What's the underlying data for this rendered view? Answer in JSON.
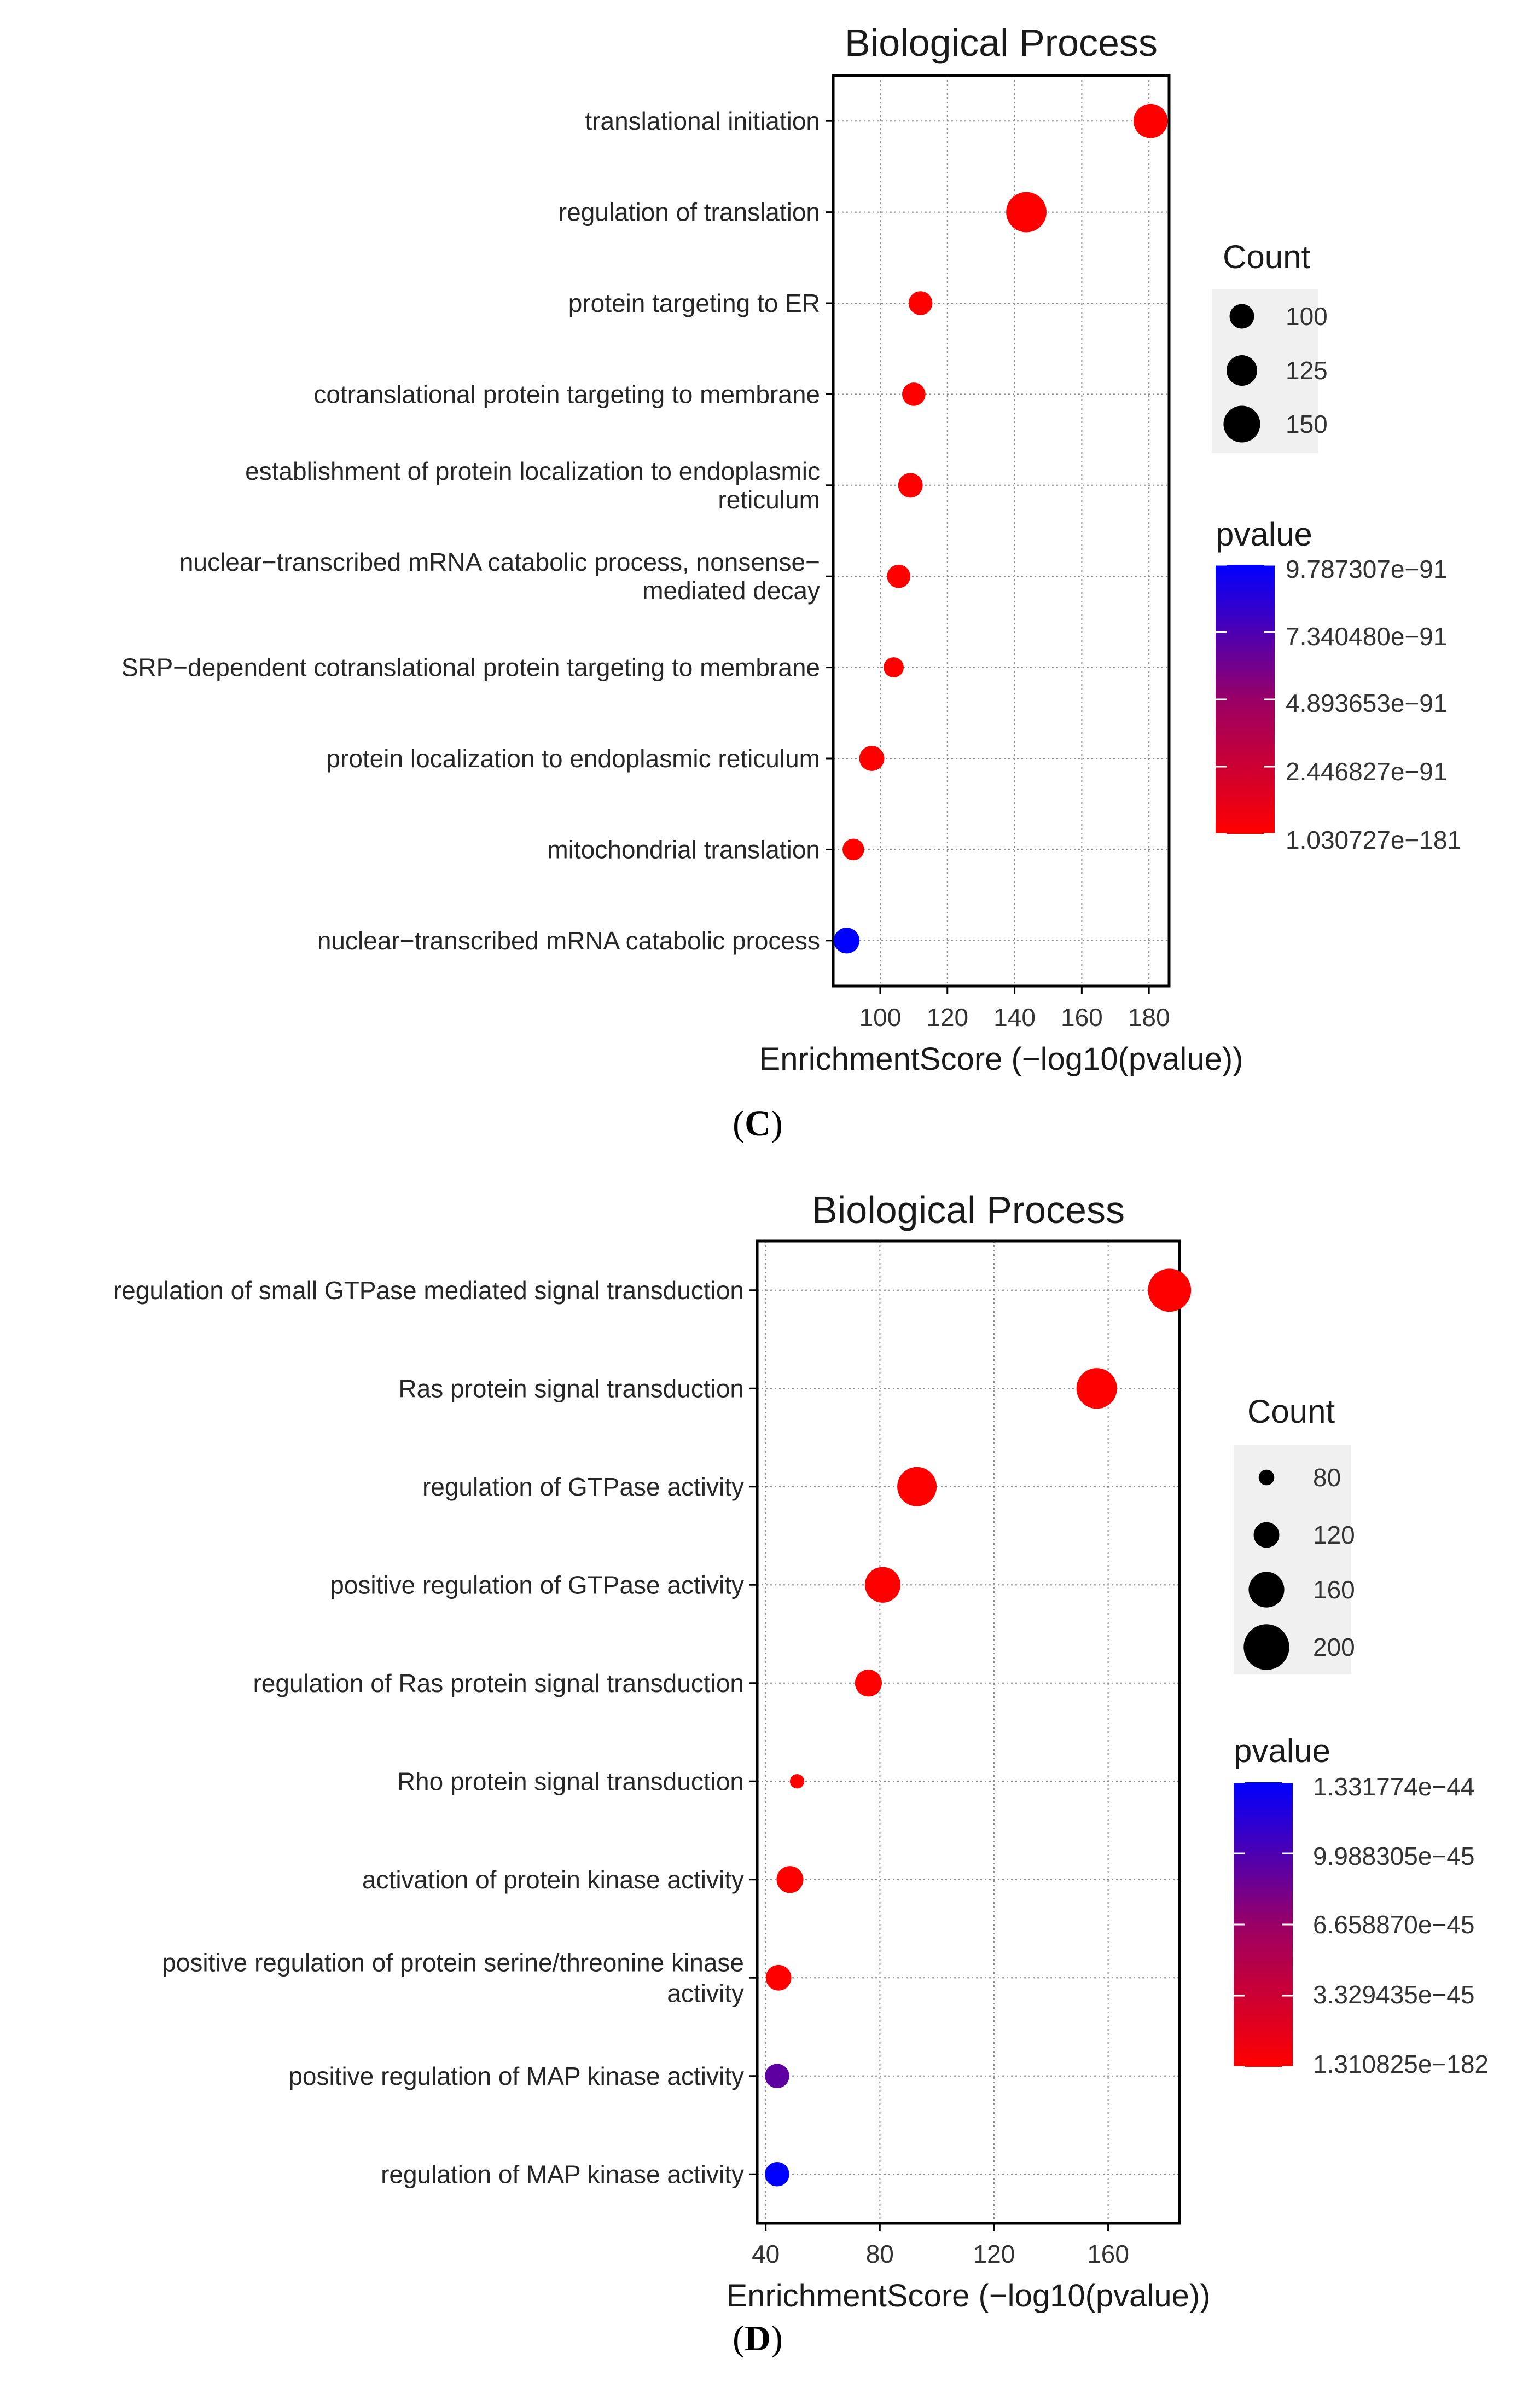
{
  "chart_data": [
    {
      "type": "scatter",
      "panel_prefix": "(",
      "panel_letter": "C",
      "panel_suffix": ")",
      "title": "Biological Process",
      "xlabel": "EnrichmentScore (−log10(pvalue))",
      "xlim": [
        86,
        186
      ],
      "xticks": [
        100,
        120,
        140,
        160,
        180
      ],
      "grid": true,
      "terms": [
        {
          "label": [
            "translational initiation"
          ],
          "x": 180.5,
          "count": 140,
          "pvalue_frac": 0.0
        },
        {
          "label": [
            "regulation of translation"
          ],
          "x": 143.5,
          "count": 165,
          "pvalue_frac": 0.0
        },
        {
          "label": [
            "protein targeting to ER"
          ],
          "x": 112,
          "count": 97,
          "pvalue_frac": 0.0
        },
        {
          "label": [
            "cotranslational protein targeting to membrane"
          ],
          "x": 110,
          "count": 95,
          "pvalue_frac": 0.0
        },
        {
          "label": [
            "establishment of protein localization to endoplasmic",
            "reticulum"
          ],
          "x": 109,
          "count": 100,
          "pvalue_frac": 0.0
        },
        {
          "label": [
            "nuclear−transcribed mRNA catabolic process, nonsense−",
            "mediated decay"
          ],
          "x": 105.5,
          "count": 95,
          "pvalue_frac": 0.0
        },
        {
          "label": [
            "SRP−dependent cotranslational protein targeting to membrane"
          ],
          "x": 104,
          "count": 82,
          "pvalue_frac": 0.0
        },
        {
          "label": [
            "protein localization to endoplasmic reticulum"
          ],
          "x": 97.5,
          "count": 102,
          "pvalue_frac": 0.0
        },
        {
          "label": [
            "mitochondrial translation"
          ],
          "x": 92,
          "count": 88,
          "pvalue_frac": 0.0
        },
        {
          "label": [
            "nuclear−transcribed mRNA catabolic process"
          ],
          "x": 90,
          "count": 105,
          "pvalue_frac": 1.0
        }
      ],
      "legend": {
        "size_title": "Count",
        "size_items": [
          {
            "label": "100",
            "count": 100
          },
          {
            "label": "125",
            "count": 125
          },
          {
            "label": "150",
            "count": 150
          }
        ],
        "size_range": [
          80,
          170
        ],
        "color_title": "pvalue",
        "color_labels": [
          "9.787307e−91",
          "7.340480e−91",
          "4.893653e−91",
          "2.446827e−91",
          "1.030727e−181"
        ],
        "color_high": "#0000ff",
        "color_low": "#ff0000"
      }
    },
    {
      "type": "scatter",
      "panel_prefix": "(",
      "panel_letter": "D",
      "panel_suffix": ")",
      "title": "Biological Process",
      "xlabel": "EnrichmentScore (−log10(pvalue))",
      "xlim": [
        37,
        185
      ],
      "xticks": [
        40,
        80,
        120,
        160
      ],
      "grid": true,
      "terms": [
        {
          "label": [
            "regulation of small GTPase mediated signal transduction"
          ],
          "x": 181.5,
          "count": 190,
          "pvalue_frac": 0.0
        },
        {
          "label": [
            "Ras protein signal transduction"
          ],
          "x": 156,
          "count": 180,
          "pvalue_frac": 0.0
        },
        {
          "label": [
            "regulation of GTPase activity"
          ],
          "x": 93,
          "count": 175,
          "pvalue_frac": 0.0
        },
        {
          "label": [
            "positive regulation of GTPase activity"
          ],
          "x": 81,
          "count": 160,
          "pvalue_frac": 0.0
        },
        {
          "label": [
            "regulation of Ras protein signal transduction"
          ],
          "x": 76,
          "count": 125,
          "pvalue_frac": 0.0
        },
        {
          "label": [
            "Rho protein signal transduction"
          ],
          "x": 51,
          "count": 75,
          "pvalue_frac": 0.0
        },
        {
          "label": [
            "activation of protein kinase activity"
          ],
          "x": 48.5,
          "count": 125,
          "pvalue_frac": 0.0
        },
        {
          "label": [
            "positive regulation of protein serine/threonine kinase",
            "activity"
          ],
          "x": 44.5,
          "count": 120,
          "pvalue_frac": 0.0
        },
        {
          "label": [
            "positive regulation of MAP kinase activity"
          ],
          "x": 44,
          "count": 115,
          "pvalue_frac": 0.63
        },
        {
          "label": [
            "regulation of MAP kinase activity"
          ],
          "x": 44,
          "count": 115,
          "pvalue_frac": 1.0
        }
      ],
      "legend": {
        "size_title": "Count",
        "size_items": [
          {
            "label": "80",
            "count": 80
          },
          {
            "label": "120",
            "count": 120
          },
          {
            "label": "160",
            "count": 160
          },
          {
            "label": "200",
            "count": 200
          }
        ],
        "size_range": [
          70,
          210
        ],
        "color_title": "pvalue",
        "color_labels": [
          "1.331774e−44",
          "9.988305e−45",
          "6.658870e−45",
          "3.329435e−45",
          "1.310825e−182"
        ],
        "color_high": "#0000ff",
        "color_low": "#ff0000"
      }
    }
  ]
}
